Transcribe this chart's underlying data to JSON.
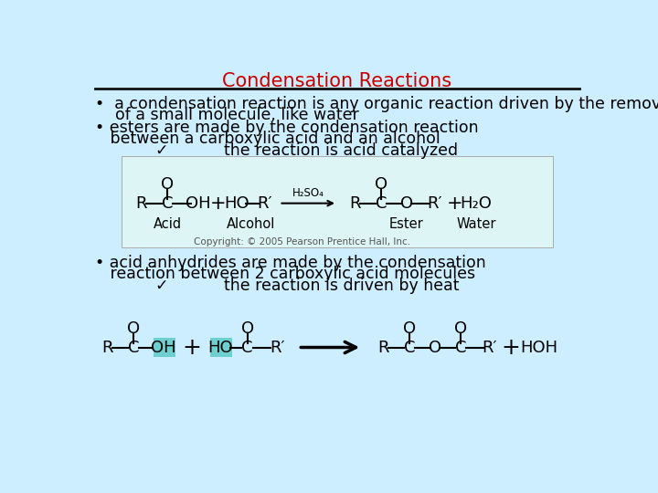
{
  "title": "Condensation Reactions",
  "title_color": "#cc0000",
  "background_color": "#cceeff",
  "text_color": "#000000",
  "highlight_color": "#6dcfcf",
  "font_size": 12.5,
  "title_font_size": 15,
  "eq_font_size": 13,
  "label_font_size": 10.5,
  "copyright_font_size": 7.5,
  "bullet1_line1": "•  a condensation reaction is any organic reaction driven by the removal",
  "bullet1_line2": "    of a small molecule, like water",
  "bullet2_line1": "• esters are made by the condensation reaction",
  "bullet2_line2": "   between a carboxylic acid and an alcohol",
  "bullet2_line3": "            ✓           the reaction is acid catalyzed",
  "bullet3_line1": "• acid anhydrides are made by the condensation",
  "bullet3_line2": "   reaction between 2 carboxylic acid molecules",
  "bullet3_line3": "            ✓           the reaction is driven by heat",
  "copyright": "Copyright: © 2005 Pearson Prentice Hall, Inc."
}
